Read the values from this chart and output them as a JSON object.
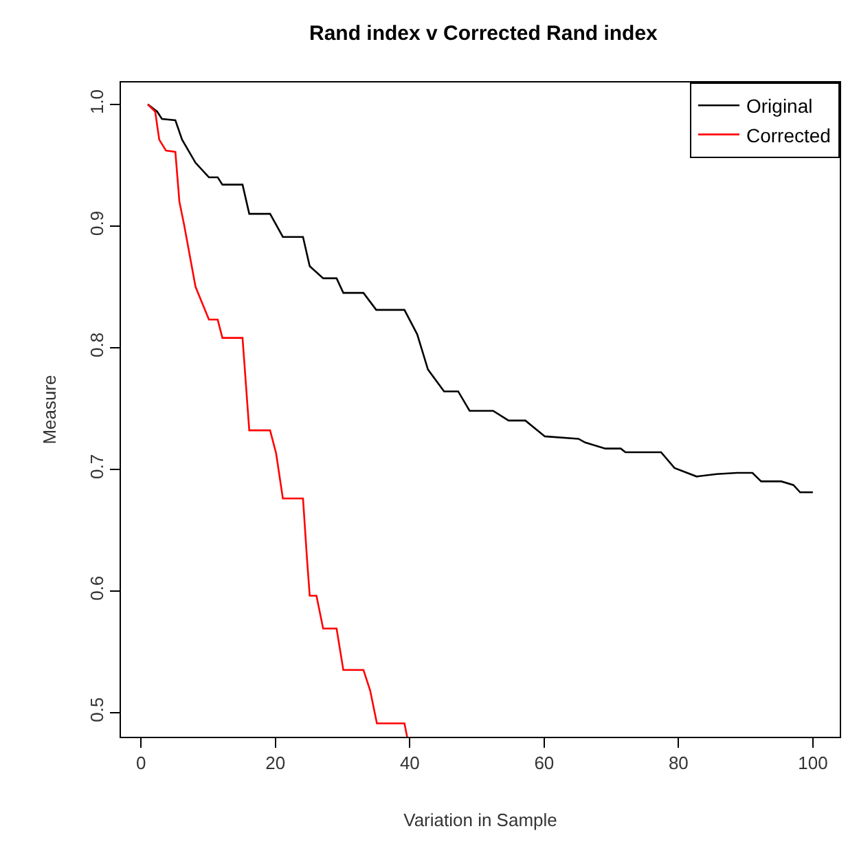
{
  "chart_data": {
    "type": "line",
    "title": "Rand index v Corrected Rand index",
    "xlabel": "Variation in Sample",
    "ylabel": "Measure",
    "xlim": [
      -3,
      104
    ],
    "ylim": [
      0.48,
      1.018
    ],
    "xticks": [
      0,
      20,
      40,
      60,
      80,
      100
    ],
    "yticks": [
      0.5,
      0.6,
      0.7,
      0.8,
      0.9,
      {
        "value": 1,
        "label": "1.0"
      }
    ],
    "legend": "top right",
    "marker": "none",
    "line_style": "solid",
    "series": [
      {
        "name": "Original",
        "color": "#000000",
        "x": [
          1,
          2.4,
          3.1,
          5.1,
          6.1,
          8.1,
          10.1,
          11.4,
          12.1,
          15.1,
          16.1,
          19.2,
          21.1,
          24.1,
          25.1,
          27.1,
          29.1,
          30.1,
          33.1,
          35,
          39.2,
          41.1,
          42.7,
          45.1,
          47.2,
          48.9,
          52.4,
          54.7,
          57.2,
          60.1,
          65.1,
          66.1,
          69.1,
          71.4,
          72.1,
          77.4,
          79.4,
          82.7,
          85.7,
          88.7,
          91,
          92.3,
          95.3,
          97.1,
          98.1,
          100
        ],
        "values": [
          1.0,
          0.994,
          0.988,
          0.987,
          0.971,
          0.952,
          0.94,
          0.94,
          0.934,
          0.934,
          0.91,
          0.91,
          0.891,
          0.891,
          0.867,
          0.857,
          0.857,
          0.845,
          0.845,
          0.831,
          0.831,
          0.811,
          0.782,
          0.764,
          0.764,
          0.748,
          0.748,
          0.74,
          0.74,
          0.727,
          0.725,
          0.722,
          0.717,
          0.717,
          0.714,
          0.714,
          0.701,
          0.694,
          0.696,
          0.697,
          0.697,
          0.69,
          0.69,
          0.687,
          0.681,
          0.681
        ]
      },
      {
        "name": "Corrected",
        "color": "#ff0000",
        "x": [
          1,
          2.1,
          2.7,
          3.7,
          5.1,
          5.7,
          6.4,
          8.1,
          10.1,
          11.4,
          12.1,
          15.1,
          16.1,
          19.2,
          20.1,
          21.1,
          24.1,
          24.7,
          25.1,
          26.1,
          27.1,
          29.1,
          30.1,
          33.1,
          34.1,
          35.1,
          39.2,
          39.6
        ],
        "values": [
          1.0,
          0.994,
          0.971,
          0.962,
          0.961,
          0.92,
          0.901,
          0.85,
          0.823,
          0.823,
          0.808,
          0.808,
          0.732,
          0.732,
          0.713,
          0.676,
          0.676,
          0.626,
          0.596,
          0.596,
          0.569,
          0.569,
          0.535,
          0.535,
          0.518,
          0.491,
          0.491,
          0.48
        ]
      }
    ]
  }
}
